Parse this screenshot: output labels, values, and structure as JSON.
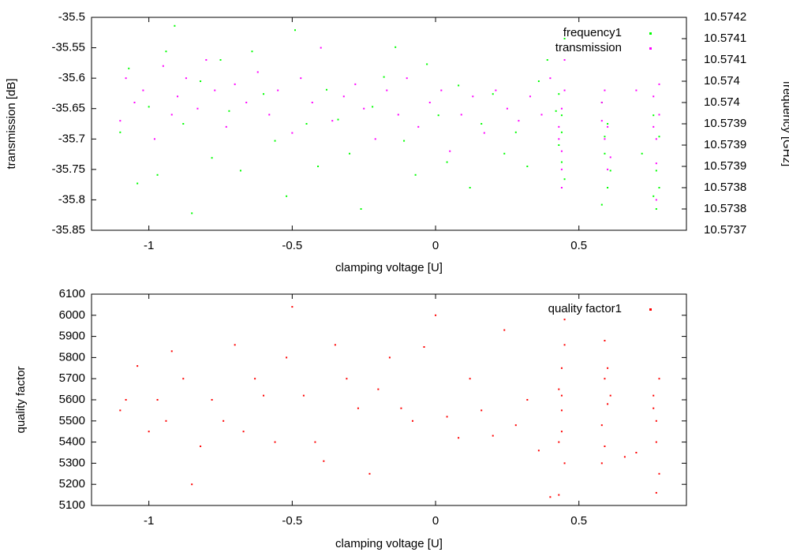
{
  "chart_data": [
    {
      "type": "scatter",
      "xlabel": "clamping voltage [U]",
      "ylabel": "transmission [dB]",
      "y2label": "frequency [GHz]",
      "xlim": [
        -1.2,
        0.875
      ],
      "xticks": [
        -1,
        -0.5,
        0,
        0.5
      ],
      "ylim": [
        -35.85,
        -35.5
      ],
      "yticks": [
        -35.85,
        -35.8,
        -35.75,
        -35.7,
        -35.65,
        -35.6,
        -35.55,
        -35.5
      ],
      "y2lim": [
        10.5737,
        10.5742
      ],
      "y2ticks": [
        10.5737,
        {
          "value": 10.57375,
          "label": "10.5738"
        },
        10.5738,
        {
          "value": 10.57385,
          "label": "10.5739"
        },
        10.5739,
        {
          "value": 10.57395,
          "label": "10.5739"
        },
        10.574,
        {
          "value": 10.57405,
          "label": "10.574"
        },
        10.5741,
        {
          "value": 10.57415,
          "label": "10.5741"
        },
        10.5742
      ],
      "legend": "top right",
      "series": [
        {
          "name": "frequency1",
          "color": "#00ff00",
          "axis": "y2",
          "x": [
            -1.1,
            -1.07,
            -1.04,
            -1.0,
            -0.97,
            -0.94,
            -0.91,
            -0.88,
            -0.85,
            -0.82,
            -0.78,
            -0.75,
            -0.72,
            -0.68,
            -0.64,
            -0.6,
            -0.56,
            -0.52,
            -0.49,
            -0.45,
            -0.41,
            -0.38,
            -0.34,
            -0.3,
            -0.26,
            -0.22,
            -0.18,
            -0.14,
            -0.11,
            -0.07,
            -0.03,
            0.01,
            0.04,
            0.08,
            0.12,
            0.16,
            0.2,
            0.24,
            0.28,
            0.32,
            0.36,
            0.39,
            0.42,
            0.43,
            0.44,
            0.45,
            0.44,
            0.43,
            0.45,
            0.44,
            0.58,
            0.59,
            0.6,
            0.59,
            0.61,
            0.58,
            0.6,
            0.77,
            0.76,
            0.78,
            0.77,
            0.76,
            0.78,
            0.72
          ],
          "values": [
            10.57393,
            10.57408,
            10.57381,
            10.57399,
            10.57383,
            10.57412,
            10.57418,
            10.57395,
            10.57374,
            10.57405,
            10.57387,
            10.5741,
            10.57398,
            10.57384,
            10.57412,
            10.57402,
            10.57391,
            10.57378,
            10.57417,
            10.57395,
            10.57385,
            10.57403,
            10.57396,
            10.57388,
            10.57375,
            10.57399,
            10.57406,
            10.57413,
            10.57391,
            10.57383,
            10.57409,
            10.57397,
            10.57386,
            10.57404,
            10.5738,
            10.57395,
            10.57402,
            10.57388,
            10.57393,
            10.57385,
            10.57405,
            10.5741,
            10.57398,
            10.5739,
            10.57386,
            10.57415,
            10.57393,
            10.57402,
            10.57382,
            10.57397,
            10.574,
            10.57388,
            10.5738,
            10.57392,
            10.57384,
            10.57376,
            10.57395,
            10.57384,
            10.57378,
            10.57392,
            10.57375,
            10.57397,
            10.5738,
            10.57388
          ]
        },
        {
          "name": "transmission",
          "color": "#ff00ff",
          "x": [
            -1.1,
            -1.08,
            -1.05,
            -1.02,
            -0.98,
            -0.95,
            -0.92,
            -0.9,
            -0.87,
            -0.83,
            -0.8,
            -0.77,
            -0.73,
            -0.7,
            -0.66,
            -0.62,
            -0.58,
            -0.55,
            -0.5,
            -0.47,
            -0.43,
            -0.4,
            -0.36,
            -0.32,
            -0.28,
            -0.25,
            -0.21,
            -0.17,
            -0.13,
            -0.1,
            -0.06,
            -0.02,
            0.02,
            0.05,
            0.09,
            0.13,
            0.17,
            0.21,
            0.25,
            0.29,
            0.33,
            0.37,
            0.4,
            0.43,
            0.44,
            0.44,
            0.45,
            0.43,
            0.44,
            0.45,
            0.44,
            0.58,
            0.59,
            0.6,
            0.58,
            0.61,
            0.59,
            0.6,
            0.76,
            0.77,
            0.78,
            0.77,
            0.76,
            0.78,
            0.77,
            0.7
          ],
          "values": [
            -35.67,
            -35.6,
            -35.64,
            -35.62,
            -35.7,
            -35.58,
            -35.66,
            -35.63,
            -35.6,
            -35.65,
            -35.57,
            -35.62,
            -35.68,
            -35.61,
            -35.64,
            -35.59,
            -35.66,
            -35.62,
            -35.69,
            -35.6,
            -35.64,
            -35.55,
            -35.67,
            -35.63,
            -35.61,
            -35.65,
            -35.7,
            -35.62,
            -35.66,
            -35.6,
            -35.68,
            -35.64,
            -35.62,
            -35.72,
            -35.66,
            -35.63,
            -35.69,
            -35.62,
            -35.65,
            -35.67,
            -35.63,
            -35.66,
            -35.6,
            -35.7,
            -35.65,
            -35.75,
            -35.62,
            -35.68,
            -35.78,
            -35.57,
            -35.72,
            -35.64,
            -35.7,
            -35.75,
            -35.67,
            -35.73,
            -35.62,
            -35.68,
            -35.63,
            -35.7,
            -35.66,
            -35.74,
            -35.68,
            -35.61,
            -35.8,
            -35.62
          ]
        }
      ]
    },
    {
      "type": "scatter",
      "xlabel": "clamping voltage [U]",
      "ylabel": "quality factor",
      "xlim": [
        -1.2,
        0.875
      ],
      "xticks": [
        -1,
        -0.5,
        0,
        0.5
      ],
      "ylim": [
        5100,
        6100
      ],
      "yticks": [
        5100,
        5200,
        5300,
        5400,
        5500,
        5600,
        5700,
        5800,
        5900,
        6000,
        6100
      ],
      "legend": "top right",
      "series": [
        {
          "name": "quality factor1",
          "color": "#ff0000",
          "x": [
            -1.1,
            -1.08,
            -1.04,
            -1.0,
            -0.97,
            -0.94,
            -0.92,
            -0.88,
            -0.85,
            -0.82,
            -0.78,
            -0.74,
            -0.7,
            -0.67,
            -0.63,
            -0.6,
            -0.56,
            -0.52,
            -0.5,
            -0.46,
            -0.42,
            -0.39,
            -0.35,
            -0.31,
            -0.27,
            -0.23,
            -0.2,
            -0.16,
            -0.12,
            -0.08,
            -0.04,
            0.0,
            0.04,
            0.08,
            0.12,
            0.16,
            0.2,
            0.24,
            0.28,
            0.32,
            0.36,
            0.4,
            0.43,
            0.44,
            0.45,
            0.44,
            0.43,
            0.45,
            0.44,
            0.45,
            0.44,
            0.43,
            0.58,
            0.59,
            0.6,
            0.59,
            0.61,
            0.58,
            0.6,
            0.59,
            0.76,
            0.77,
            0.78,
            0.77,
            0.76,
            0.78,
            0.77,
            0.7,
            0.66
          ],
          "values": [
            5550,
            5600,
            5760,
            5450,
            5600,
            5500,
            5830,
            5700,
            5200,
            5380,
            5600,
            5500,
            5860,
            5450,
            5700,
            5620,
            5400,
            5800,
            6040,
            5620,
            5400,
            5310,
            5860,
            5700,
            5560,
            5250,
            5650,
            5800,
            5560,
            5500,
            5850,
            6000,
            5520,
            5420,
            5700,
            5550,
            5430,
            5930,
            5480,
            5600,
            5360,
            5140,
            5650,
            5750,
            5980,
            5450,
            5400,
            5860,
            5550,
            5300,
            5620,
            5150,
            5480,
            5700,
            5580,
            5380,
            5620,
            5300,
            5750,
            5880,
            5560,
            5500,
            5700,
            5400,
            5620,
            5250,
            5160,
            5350,
            5330
          ]
        }
      ]
    }
  ]
}
